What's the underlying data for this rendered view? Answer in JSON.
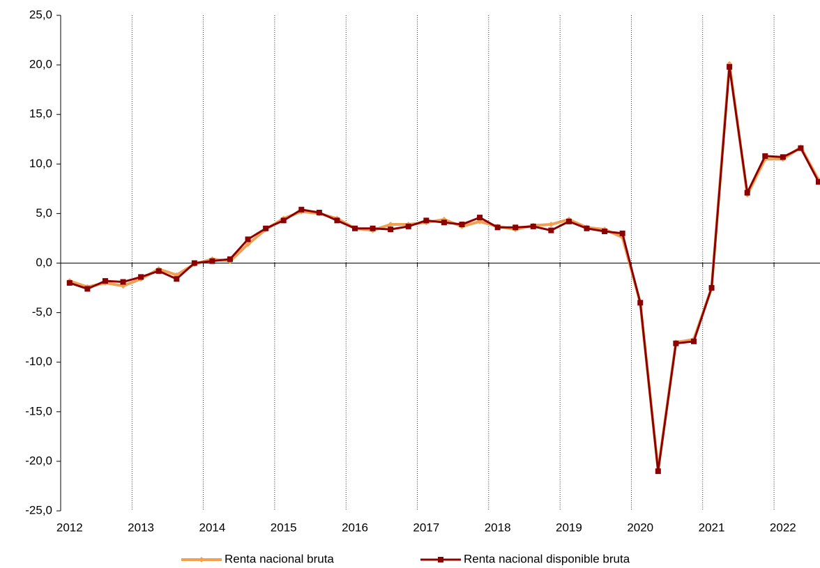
{
  "chart_data": {
    "type": "line",
    "categories": [
      "2012",
      null,
      null,
      null,
      "2013",
      null,
      null,
      null,
      "2014",
      null,
      null,
      null,
      "2015",
      null,
      null,
      null,
      "2016",
      null,
      null,
      null,
      "2017",
      null,
      null,
      null,
      "2018",
      null,
      null,
      null,
      "2019",
      null,
      null,
      null,
      "2020",
      null,
      null,
      null,
      "2021",
      null,
      null,
      null,
      "2022",
      null,
      null
    ],
    "series": [
      {
        "name": "Renta nacional bruta",
        "color": "#f0a050",
        "marker": "diamond",
        "values": [
          -1.8,
          -2.4,
          -2.0,
          -2.3,
          -1.6,
          -0.6,
          -1.2,
          -0.1,
          0.4,
          0.2,
          1.9,
          3.4,
          4.5,
          5.2,
          5.0,
          4.5,
          3.5,
          3.3,
          3.9,
          3.9,
          4.1,
          4.4,
          3.7,
          4.2,
          3.7,
          3.4,
          3.8,
          3.9,
          4.4,
          3.6,
          3.4,
          2.6,
          -4.0,
          -20.9,
          -8.0,
          -7.7,
          -2.5,
          20.1,
          6.9,
          10.5,
          10.5,
          11.7,
          8.4
        ]
      },
      {
        "name": "Renta nacional disponible bruta",
        "color": "#8b0000",
        "marker": "square",
        "values": [
          -2.0,
          -2.6,
          -1.8,
          -1.9,
          -1.4,
          -0.8,
          -1.6,
          0.0,
          0.2,
          0.4,
          2.4,
          3.5,
          4.3,
          5.4,
          5.1,
          4.3,
          3.5,
          3.5,
          3.4,
          3.7,
          4.3,
          4.1,
          3.9,
          4.6,
          3.6,
          3.6,
          3.7,
          3.3,
          4.2,
          3.5,
          3.2,
          3.0,
          -4.0,
          -21.0,
          -8.1,
          -7.9,
          -2.5,
          19.8,
          7.1,
          10.8,
          10.7,
          11.6,
          8.2
        ]
      }
    ],
    "ylim": [
      -25,
      25
    ],
    "yticks": [
      {
        "value": -25,
        "label": "-25,0"
      },
      {
        "value": -20,
        "label": "-20,0"
      },
      {
        "value": -15,
        "label": "-15,0"
      },
      {
        "value": -10,
        "label": "-10,0"
      },
      {
        "value": -5,
        "label": "-5,0"
      },
      {
        "value": 0,
        "label": "0,0"
      },
      {
        "value": 5,
        "label": "5,0"
      },
      {
        "value": 10,
        "label": "10,0"
      },
      {
        "value": 15,
        "label": "15,0"
      },
      {
        "value": 20,
        "label": "20,0"
      },
      {
        "value": 25,
        "label": "25,0"
      }
    ],
    "grid": "x-years",
    "legend": "bottom"
  }
}
